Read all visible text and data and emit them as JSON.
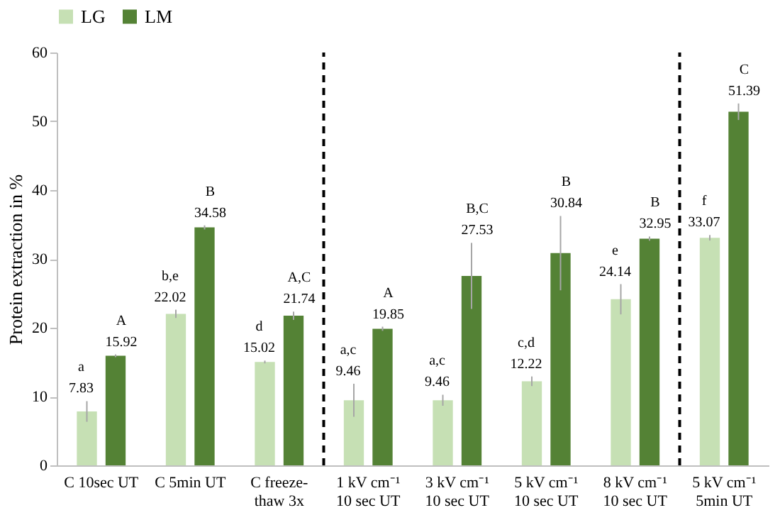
{
  "chart_data": {
    "type": "bar",
    "ylabel": "Protein extraction in %",
    "categories": [
      "C 10sec UT",
      "C 5min UT",
      "C freeze-\nthaw 3x",
      "1 kV cm⁻¹\n10 sec UT",
      "3 kV cm⁻¹\n10 sec UT",
      "5 kV cm⁻¹\n10 sec UT",
      "8 kV cm⁻¹\n10 sec UT",
      "5 kV cm⁻¹\n5min UT"
    ],
    "series": [
      {
        "name": "LG",
        "color": "#c6e0b4",
        "values": [
          7.83,
          22.02,
          15.02,
          9.46,
          9.46,
          12.22,
          24.14,
          33.07
        ],
        "errors": [
          1.5,
          0.6,
          0.2,
          2.4,
          0.8,
          0.7,
          2.2,
          0.4
        ]
      },
      {
        "name": "LM",
        "color": "#548235",
        "values": [
          15.92,
          34.58,
          21.74,
          19.85,
          27.53,
          30.84,
          32.95,
          51.39
        ],
        "errors": [
          0.2,
          0.3,
          0.6,
          0.3,
          4.8,
          5.4,
          0.3,
          1.2
        ]
      }
    ],
    "data_labels": true,
    "ylim": [
      0,
      60
    ],
    "yticks": [
      0,
      10,
      20,
      30,
      40,
      50,
      60
    ],
    "grid": false,
    "legend": "top",
    "annotations": [
      "a",
      "b,e",
      "d",
      "a,c",
      "a,c",
      "c,d",
      "e",
      "f",
      "A",
      "B",
      "A,C",
      "A",
      "B,C",
      "B",
      "B",
      "C"
    ]
  }
}
